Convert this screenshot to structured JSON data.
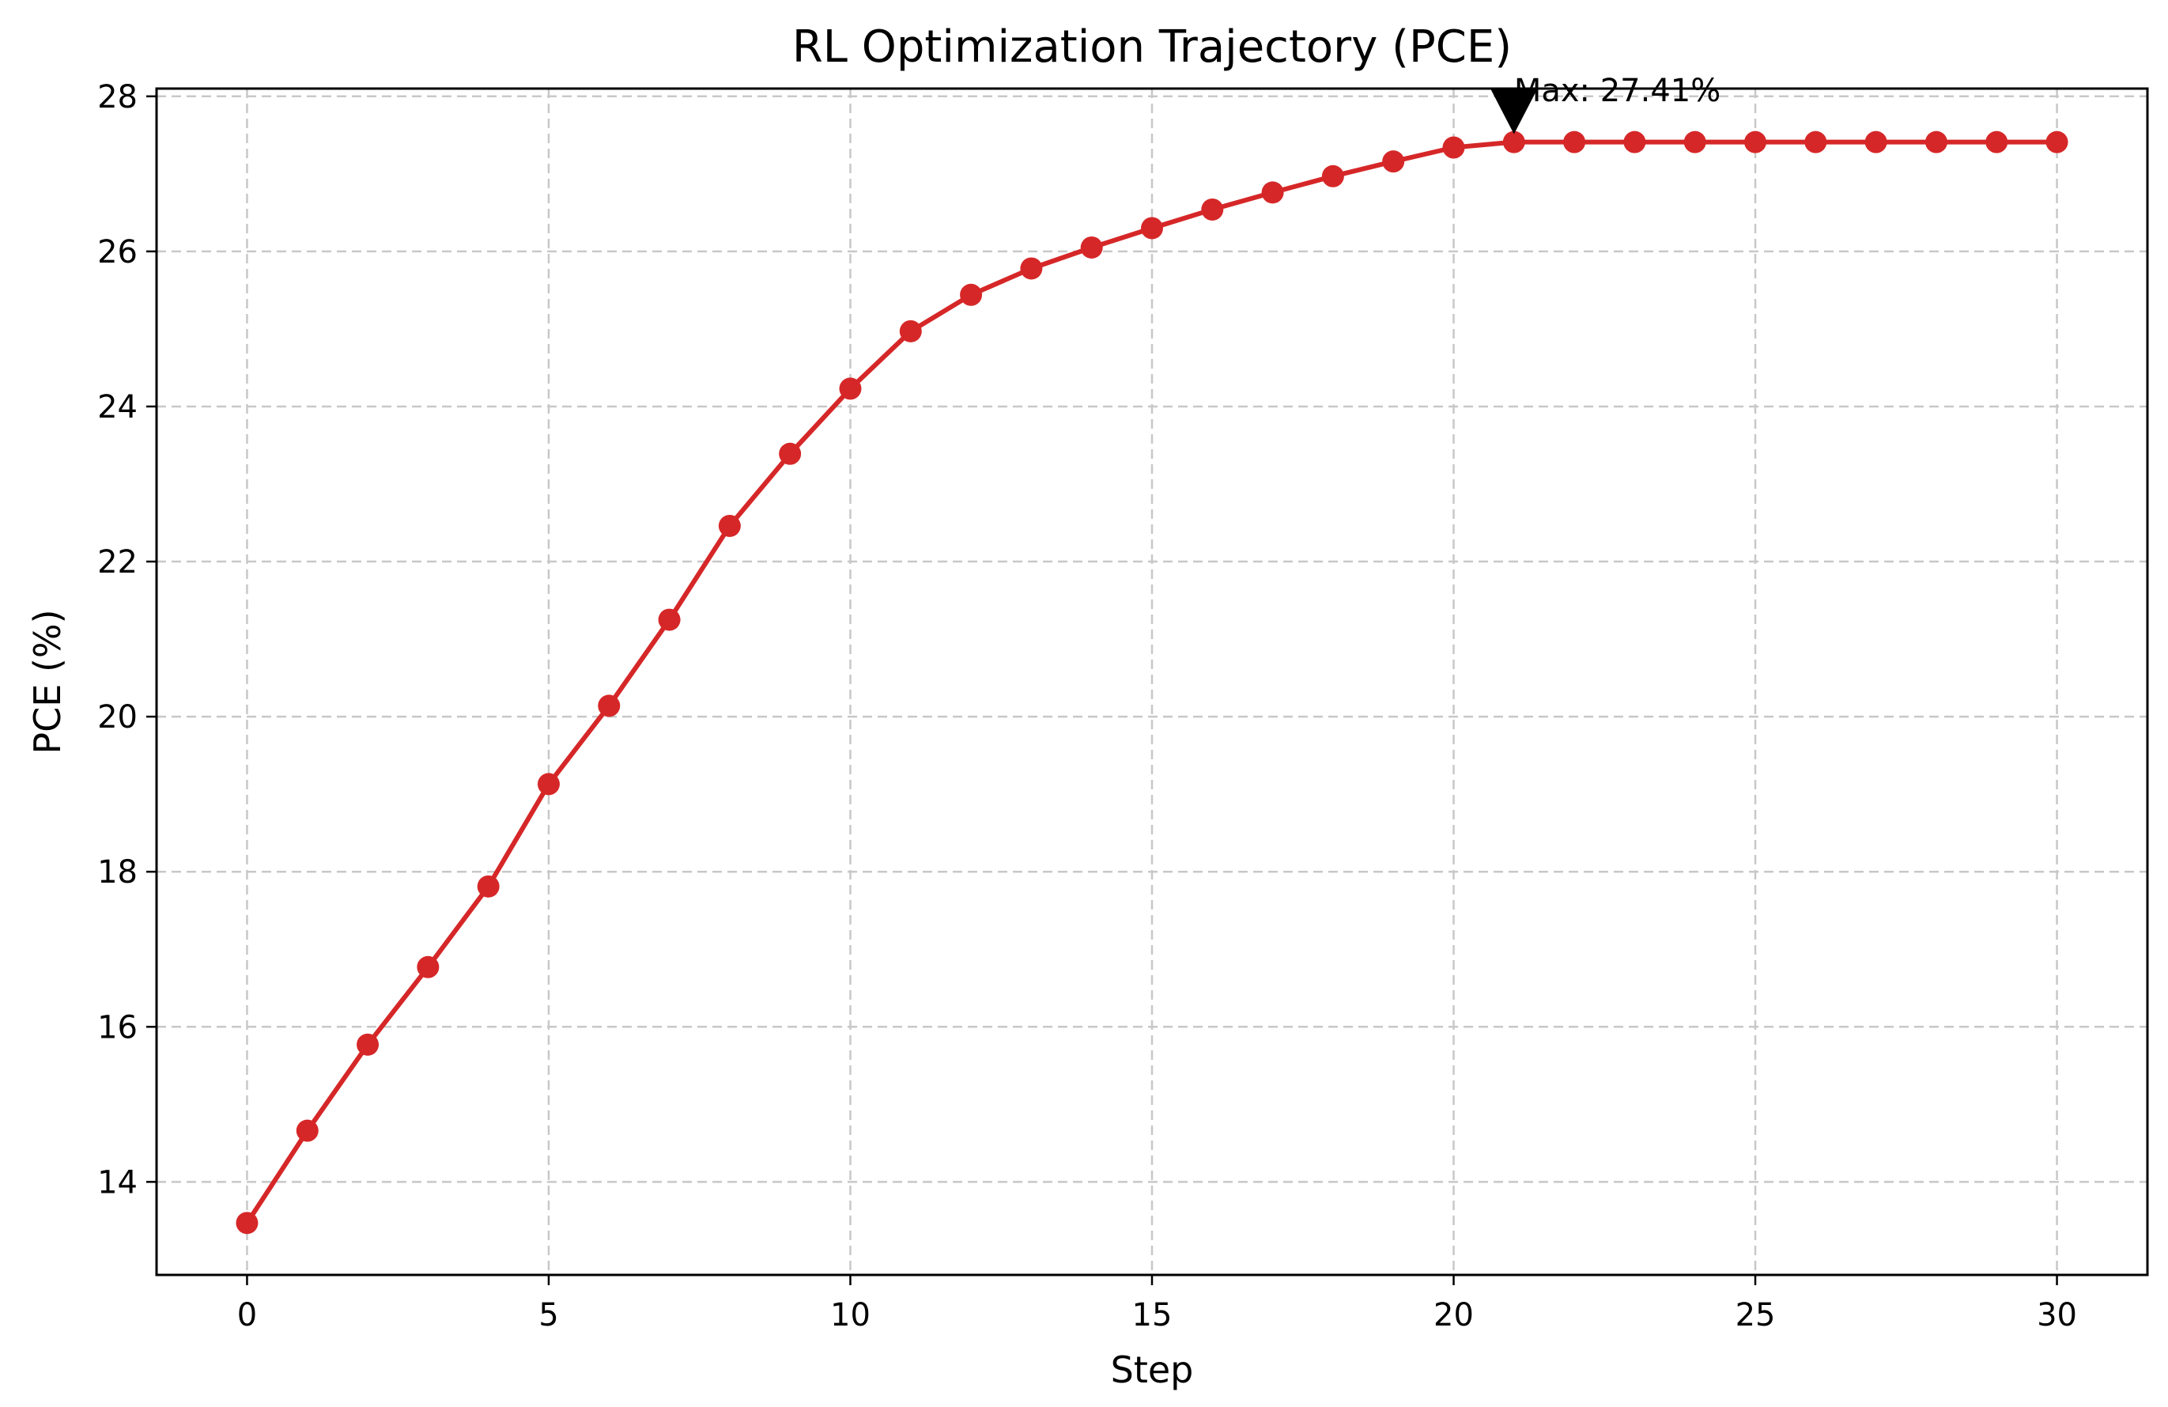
{
  "chart_data": {
    "type": "line",
    "title": "RL Optimization Trajectory (PCE)",
    "xlabel": "Step",
    "ylabel": "PCE (%)",
    "xlim": [
      -1.5,
      31.5
    ],
    "ylim": [
      12.8,
      28.1
    ],
    "xticks": [
      0,
      5,
      10,
      15,
      20,
      25,
      30
    ],
    "yticks": [
      14,
      16,
      18,
      20,
      22,
      24,
      26,
      28
    ],
    "grid": true,
    "series": [
      {
        "color": "#d62728",
        "marker": "circle",
        "x": [
          0,
          1,
          2,
          3,
          4,
          5,
          6,
          7,
          8,
          9,
          10,
          11,
          12,
          13,
          14,
          15,
          16,
          17,
          18,
          19,
          20,
          21,
          22,
          23,
          24,
          25,
          26,
          27,
          28,
          29,
          30
        ],
        "y": [
          13.47,
          14.66,
          15.77,
          16.77,
          17.81,
          19.13,
          20.14,
          21.25,
          22.46,
          23.39,
          24.23,
          24.97,
          25.44,
          25.78,
          26.05,
          26.3,
          26.54,
          26.76,
          26.97,
          27.16,
          27.34,
          27.41,
          27.41,
          27.41,
          27.41,
          27.41,
          27.41,
          27.41,
          27.41,
          27.41,
          27.41
        ]
      }
    ],
    "annotation": {
      "text": "Max: 27.41%",
      "x": 21,
      "y": 27.41,
      "arrow_color": "#000000"
    }
  }
}
